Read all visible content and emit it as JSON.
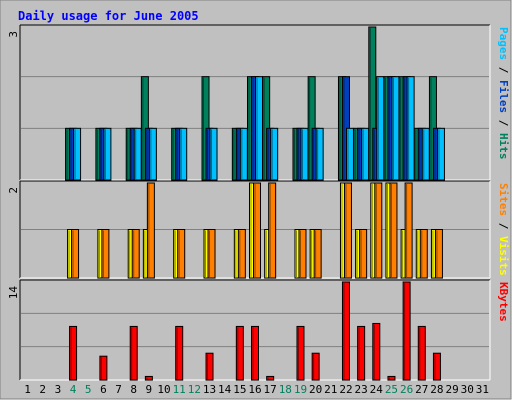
{
  "chart_data": {
    "type": "bar",
    "title": "Daily usage for June 2005",
    "days": [
      "1",
      "2",
      "3",
      "4",
      "5",
      "6",
      "7",
      "8",
      "9",
      "10",
      "11",
      "12",
      "13",
      "14",
      "15",
      "16",
      "17",
      "18",
      "19",
      "20",
      "21",
      "22",
      "23",
      "24",
      "25",
      "26",
      "27",
      "28",
      "29",
      "30",
      "31"
    ],
    "weekend_days": [
      4,
      5,
      11,
      12,
      18,
      19,
      25,
      26
    ],
    "panels": [
      {
        "id": "hits",
        "ymax_label": "3",
        "ylim": [
          0,
          3
        ],
        "axis_label": {
          "parts": [
            "Pages",
            " / ",
            "Files",
            " / ",
            "Hits"
          ],
          "colors": [
            "#00c0ff",
            "#000000",
            "#0040c0",
            "#000000",
            "#00805c"
          ]
        },
        "series": [
          {
            "name": "Hits",
            "color": "#00805c",
            "values": [
              0,
              0,
              0,
              1,
              0,
              1,
              0,
              1,
              2,
              0,
              1,
              0,
              2,
              0,
              1,
              2,
              2,
              0,
              1,
              2,
              0,
              2,
              1,
              3,
              2,
              2,
              1,
              2,
              0,
              0,
              0
            ]
          },
          {
            "name": "Files",
            "color": "#0040c0",
            "values": [
              0,
              0,
              0,
              1,
              0,
              1,
              0,
              1,
              1,
              0,
              1,
              0,
              1,
              0,
              1,
              2,
              1,
              0,
              1,
              1,
              0,
              2,
              1,
              1,
              2,
              2,
              1,
              1,
              0,
              0,
              0
            ]
          },
          {
            "name": "Pages",
            "color": "#00c0ff",
            "values": [
              0,
              0,
              0,
              1,
              0,
              1,
              0,
              1,
              1,
              0,
              1,
              0,
              1,
              0,
              1,
              2,
              1,
              0,
              1,
              1,
              0,
              1,
              1,
              2,
              2,
              2,
              1,
              1,
              0,
              0,
              0
            ]
          }
        ]
      },
      {
        "id": "visits",
        "ymax_label": "2",
        "ylim": [
          0,
          2
        ],
        "axis_label": {
          "parts": [
            "Sites",
            " / ",
            "Visits"
          ],
          "colors": [
            "#ff8000",
            "#000000",
            "#ffff00"
          ]
        },
        "series": [
          {
            "name": "Visits",
            "color": "#ffff00",
            "values": [
              0,
              0,
              0,
              1,
              0,
              1,
              0,
              1,
              1,
              0,
              1,
              0,
              1,
              0,
              1,
              2,
              1,
              0,
              1,
              1,
              0,
              2,
              1,
              2,
              2,
              1,
              1,
              1,
              0,
              0,
              0
            ]
          },
          {
            "name": "Sites",
            "color": "#ff8000",
            "values": [
              0,
              0,
              0,
              1,
              0,
              1,
              0,
              1,
              2,
              0,
              1,
              0,
              1,
              0,
              1,
              2,
              2,
              0,
              1,
              1,
              0,
              2,
              1,
              2,
              2,
              2,
              1,
              1,
              0,
              0,
              0
            ]
          }
        ]
      },
      {
        "id": "kbytes",
        "ymax_label": "14",
        "ylim": [
          0,
          16.8
        ],
        "axis_label": {
          "parts": [
            "KBytes"
          ],
          "colors": [
            "#ff0000"
          ]
        },
        "series": [
          {
            "name": "KBytes",
            "color": "#ff0000",
            "values": [
              0,
              0,
              0,
              9,
              0,
              4,
              0,
              9,
              0.6,
              0,
              9,
              0,
              4.5,
              0,
              9,
              9,
              0.6,
              0,
              9,
              4.5,
              0,
              17,
              9,
              9.5,
              0.6,
              17,
              9,
              4.5,
              0,
              0,
              0
            ]
          }
        ]
      }
    ]
  }
}
